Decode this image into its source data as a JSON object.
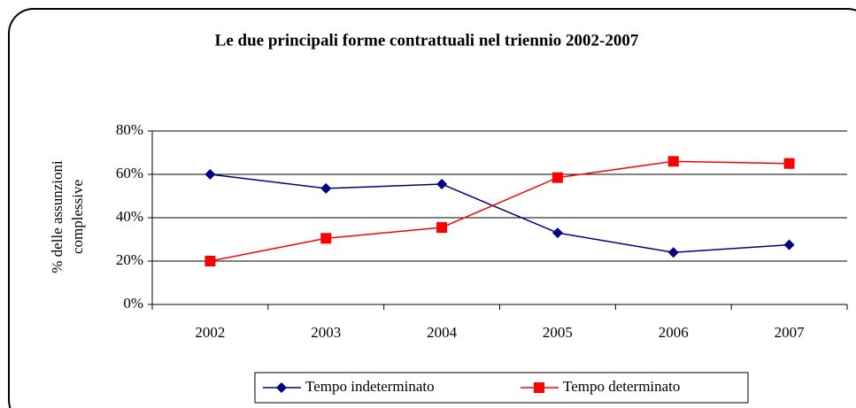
{
  "chart_data": {
    "type": "line",
    "title": "Le due principali forme contrattuali nel triennio 2002-2007",
    "ylabel": [
      "% delle assunzioni",
      "complessive"
    ],
    "categories": [
      "2002",
      "2003",
      "2004",
      "2005",
      "2006",
      "2007"
    ],
    "series": [
      {
        "name": "Tempo indeterminato",
        "color": "#000080",
        "marker": "diamond",
        "values": [
          60,
          53.5,
          55.5,
          33,
          24,
          27.5
        ]
      },
      {
        "name": "Tempo determinato",
        "color": "#ff0000",
        "marker": "square",
        "values": [
          20,
          30.5,
          35.5,
          58.5,
          66,
          65
        ]
      }
    ],
    "ylim": [
      0,
      80
    ],
    "yticks": [
      {
        "value": 0,
        "label": "0%"
      },
      {
        "value": 20,
        "label": "20%"
      },
      {
        "value": 40,
        "label": "40%"
      },
      {
        "value": 60,
        "label": "60%"
      },
      {
        "value": 80,
        "label": "80%"
      }
    ],
    "grid": true,
    "legend": "bottom"
  }
}
